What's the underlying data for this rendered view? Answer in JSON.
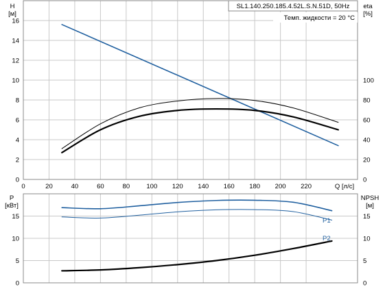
{
  "header": {
    "model": "SL1.140.250.185.4.52L.S.N.51D, 50Hz",
    "temp": "Темп. жидкости = 20 °C"
  },
  "colors": {
    "grid": "#c8c8c8",
    "blue": "#1f5f9f",
    "black": "#000000"
  },
  "chart_data": [
    {
      "type": "line",
      "left_axis": {
        "label": "H",
        "unit": "[м]",
        "ylim": [
          0,
          18
        ],
        "ticks": [
          0,
          2,
          4,
          6,
          8,
          10,
          12,
          14,
          16
        ]
      },
      "right_axis": {
        "label": "eta",
        "unit": "[%]",
        "ylim": [
          0,
          180
        ],
        "ticks": [
          0,
          20,
          40,
          60,
          80,
          100
        ]
      },
      "xaxis": {
        "label": "Q [л/с]",
        "xlim": [
          0,
          260
        ],
        "ticks": [
          0,
          20,
          40,
          60,
          80,
          100,
          120,
          140,
          160,
          180,
          200,
          220
        ]
      },
      "grid": true,
      "series": [
        {
          "axis": "left",
          "color": "#1f5f9f",
          "width": 1.6,
          "points": [
            [
              30,
              15.6
            ],
            [
              245,
              3.4
            ]
          ]
        },
        {
          "axis": "left",
          "color": "#000000",
          "width": 1.0,
          "points": [
            [
              30,
              3.1
            ],
            [
              60,
              5.6
            ],
            [
              90,
              7.2
            ],
            [
              120,
              7.9
            ],
            [
              150,
              8.15
            ],
            [
              180,
              7.95
            ],
            [
              210,
              7.2
            ],
            [
              245,
              5.75
            ]
          ]
        },
        {
          "axis": "left",
          "color": "#000000",
          "width": 2.2,
          "points": [
            [
              30,
              2.7
            ],
            [
              60,
              5.0
            ],
            [
              90,
              6.35
            ],
            [
              120,
              6.95
            ],
            [
              150,
              7.1
            ],
            [
              180,
              6.95
            ],
            [
              210,
              6.3
            ],
            [
              245,
              5.0
            ]
          ]
        }
      ]
    },
    {
      "type": "line",
      "left_axis": {
        "label": "P",
        "unit": "[кВт]",
        "ylim": [
          0,
          20
        ],
        "ticks": [
          0,
          5,
          10,
          15
        ]
      },
      "right_axis": {
        "label": "NPSH",
        "unit": "[м]",
        "ylim": [
          0,
          20
        ],
        "ticks": [
          0,
          5,
          10,
          15
        ]
      },
      "xlim": [
        0,
        260
      ],
      "grid": true,
      "series": [
        {
          "name": "P1",
          "axis": "left",
          "color": "#1f5f9f",
          "width": 1.6,
          "points": [
            [
              30,
              16.9
            ],
            [
              60,
              16.65
            ],
            [
              90,
              17.3
            ],
            [
              120,
              18.05
            ],
            [
              150,
              18.5
            ],
            [
              180,
              18.55
            ],
            [
              210,
              18.1
            ],
            [
              240,
              16.2
            ]
          ]
        },
        {
          "name": "P2",
          "axis": "left",
          "color": "#1f5f9f",
          "width": 1.0,
          "points": [
            [
              30,
              14.8
            ],
            [
              60,
              14.55
            ],
            [
              90,
              15.2
            ],
            [
              120,
              15.95
            ],
            [
              150,
              16.4
            ],
            [
              180,
              16.45
            ],
            [
              210,
              16.0
            ],
            [
              240,
              14.1
            ]
          ]
        },
        {
          "axis": "right",
          "color": "#000000",
          "width": 2.2,
          "points": [
            [
              30,
              2.7
            ],
            [
              60,
              2.9
            ],
            [
              90,
              3.4
            ],
            [
              120,
              4.1
            ],
            [
              150,
              5.0
            ],
            [
              180,
              6.2
            ],
            [
              210,
              7.7
            ],
            [
              240,
              9.4
            ]
          ]
        }
      ]
    }
  ]
}
